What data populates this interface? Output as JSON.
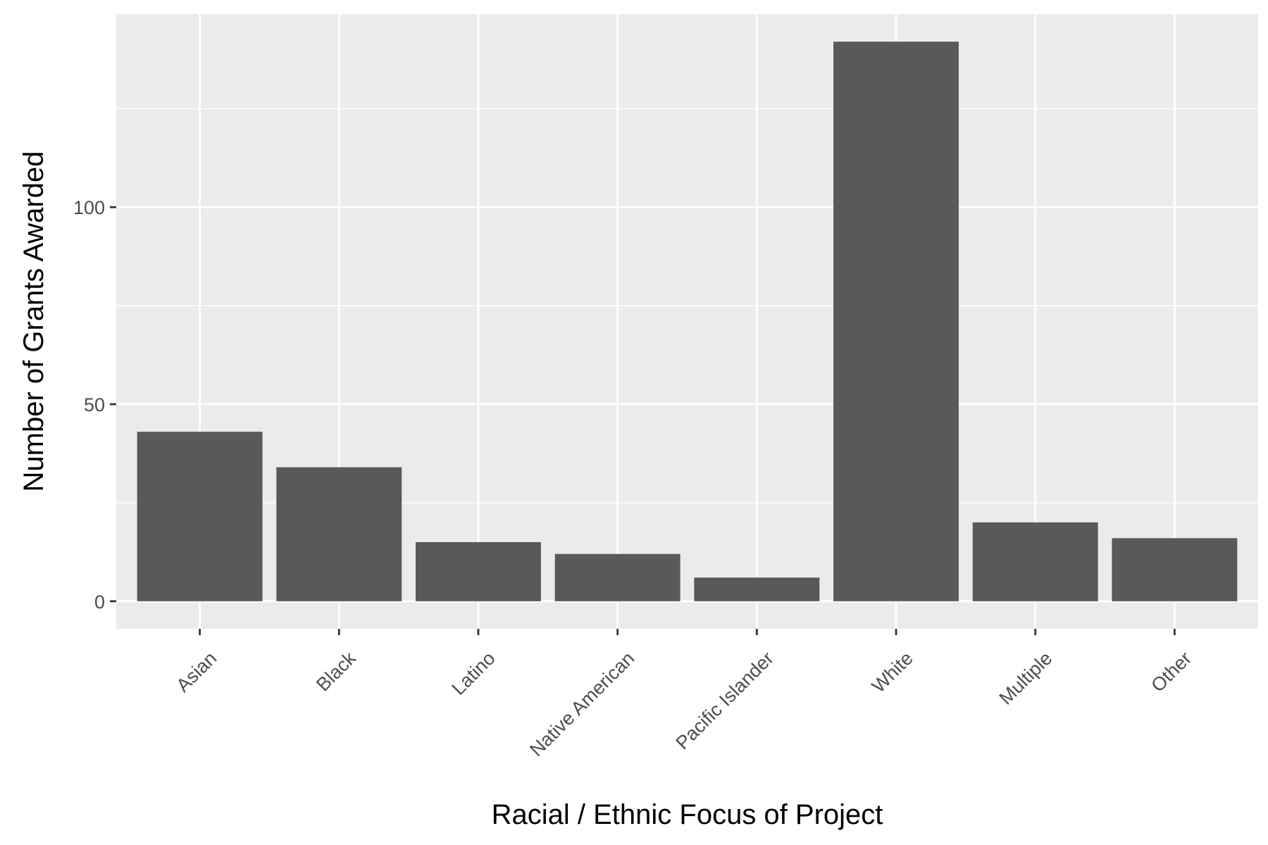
{
  "chart_data": {
    "type": "bar",
    "title": "",
    "xlabel": "Racial / Ethnic Focus of Project",
    "ylabel": "Number of Grants Awarded",
    "categories": [
      "Asian",
      "Black",
      "Latino",
      "Native American",
      "Pacific Islander",
      "White",
      "Multiple",
      "Other"
    ],
    "values": [
      43,
      34,
      15,
      12,
      6,
      142,
      20,
      16
    ],
    "yticks": [
      0,
      50,
      100
    ],
    "ytick_labels": [
      "0",
      "50",
      "100"
    ],
    "ylim": [
      -7,
      149
    ],
    "grid": true,
    "legend": "none",
    "colors": {
      "panel_background": "#ebebeb",
      "grid_line": "#ffffff",
      "bar_fill": "#595959",
      "tick_mark": "#333333",
      "tick_label": "#4d4d4d",
      "axis_title": "#000000"
    }
  }
}
